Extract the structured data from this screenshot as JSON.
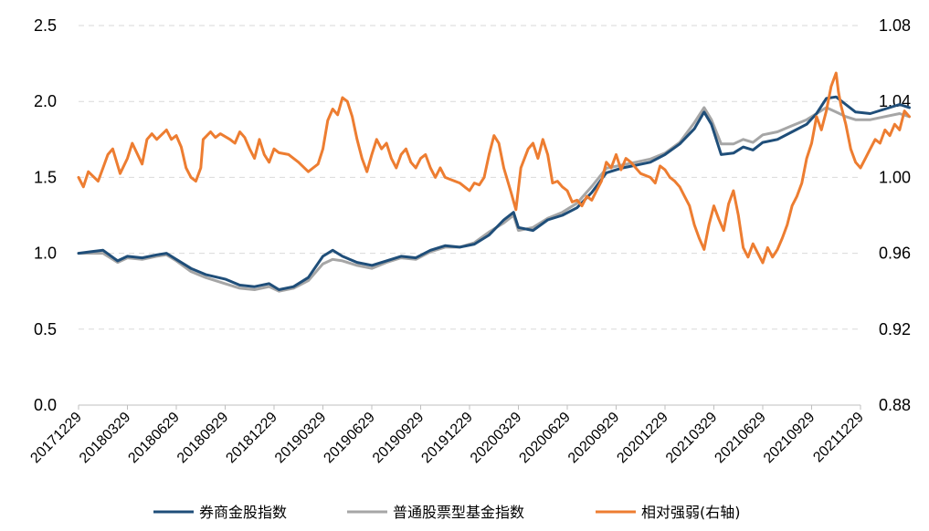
{
  "chart_data": {
    "type": "line",
    "x_categories": [
      "20171229",
      "20180329",
      "20180629",
      "20180929",
      "20181229",
      "20190329",
      "20190629",
      "20190929",
      "20191229",
      "20200329",
      "20200629",
      "20200929",
      "20201229",
      "20210329",
      "20210629",
      "20210929",
      "20211229"
    ],
    "left_axis": {
      "ticks": [
        "0.0",
        "0.5",
        "1.0",
        "1.5",
        "2.0",
        "2.5"
      ],
      "range": [
        0,
        2.5
      ]
    },
    "right_axis": {
      "ticks": [
        "0.88",
        "0.92",
        "0.96",
        "1.00",
        "1.04",
        "1.08"
      ],
      "range": [
        0.88,
        1.08
      ]
    },
    "grid": "horizontal-dashed",
    "legend_position": "bottom",
    "series": [
      {
        "name": "券商金股指数",
        "axis": "left",
        "color": "#1f4e79",
        "points": [
          [
            0,
            1.0
          ],
          [
            0.25,
            1.01
          ],
          [
            0.5,
            1.02
          ],
          [
            0.8,
            0.95
          ],
          [
            1.0,
            0.98
          ],
          [
            1.3,
            0.97
          ],
          [
            1.6,
            0.99
          ],
          [
            1.8,
            1.0
          ],
          [
            2.0,
            0.96
          ],
          [
            2.3,
            0.9
          ],
          [
            2.6,
            0.86
          ],
          [
            3.0,
            0.83
          ],
          [
            3.3,
            0.79
          ],
          [
            3.6,
            0.78
          ],
          [
            3.9,
            0.8
          ],
          [
            4.1,
            0.76
          ],
          [
            4.4,
            0.78
          ],
          [
            4.7,
            0.84
          ],
          [
            5.0,
            0.98
          ],
          [
            5.2,
            1.02
          ],
          [
            5.4,
            0.98
          ],
          [
            5.7,
            0.94
          ],
          [
            6.0,
            0.92
          ],
          [
            6.3,
            0.95
          ],
          [
            6.6,
            0.98
          ],
          [
            6.9,
            0.97
          ],
          [
            7.2,
            1.02
          ],
          [
            7.5,
            1.05
          ],
          [
            7.8,
            1.04
          ],
          [
            8.1,
            1.06
          ],
          [
            8.4,
            1.12
          ],
          [
            8.7,
            1.22
          ],
          [
            8.9,
            1.27
          ],
          [
            9.0,
            1.17
          ],
          [
            9.3,
            1.15
          ],
          [
            9.6,
            1.22
          ],
          [
            9.9,
            1.25
          ],
          [
            10.2,
            1.3
          ],
          [
            10.5,
            1.4
          ],
          [
            10.8,
            1.53
          ],
          [
            11.1,
            1.56
          ],
          [
            11.4,
            1.58
          ],
          [
            11.7,
            1.6
          ],
          [
            12.0,
            1.65
          ],
          [
            12.3,
            1.72
          ],
          [
            12.6,
            1.82
          ],
          [
            12.8,
            1.93
          ],
          [
            12.95,
            1.85
          ],
          [
            13.15,
            1.65
          ],
          [
            13.4,
            1.66
          ],
          [
            13.6,
            1.7
          ],
          [
            13.8,
            1.68
          ],
          [
            14.0,
            1.73
          ],
          [
            14.3,
            1.75
          ],
          [
            14.6,
            1.8
          ],
          [
            14.9,
            1.85
          ],
          [
            15.1,
            1.92
          ],
          [
            15.3,
            2.02
          ],
          [
            15.5,
            2.03
          ],
          [
            15.7,
            1.98
          ],
          [
            15.9,
            1.93
          ],
          [
            16.2,
            1.92
          ],
          [
            16.5,
            1.95
          ],
          [
            16.8,
            1.98
          ],
          [
            17.0,
            1.96
          ]
        ]
      },
      {
        "name": "普通股票型基金指数",
        "axis": "left",
        "color": "#a6a6a6",
        "points": [
          [
            0,
            1.0
          ],
          [
            0.25,
            1.0
          ],
          [
            0.5,
            1.0
          ],
          [
            0.8,
            0.94
          ],
          [
            1.0,
            0.97
          ],
          [
            1.3,
            0.96
          ],
          [
            1.6,
            0.98
          ],
          [
            1.8,
            0.99
          ],
          [
            2.0,
            0.95
          ],
          [
            2.3,
            0.88
          ],
          [
            2.6,
            0.84
          ],
          [
            3.0,
            0.8
          ],
          [
            3.3,
            0.77
          ],
          [
            3.6,
            0.76
          ],
          [
            3.9,
            0.78
          ],
          [
            4.1,
            0.75
          ],
          [
            4.4,
            0.77
          ],
          [
            4.7,
            0.82
          ],
          [
            5.0,
            0.93
          ],
          [
            5.2,
            0.96
          ],
          [
            5.4,
            0.95
          ],
          [
            5.7,
            0.92
          ],
          [
            6.0,
            0.9
          ],
          [
            6.3,
            0.94
          ],
          [
            6.6,
            0.97
          ],
          [
            6.9,
            0.96
          ],
          [
            7.2,
            1.01
          ],
          [
            7.5,
            1.04
          ],
          [
            7.8,
            1.04
          ],
          [
            8.1,
            1.07
          ],
          [
            8.4,
            1.14
          ],
          [
            8.7,
            1.2
          ],
          [
            8.9,
            1.25
          ],
          [
            9.0,
            1.15
          ],
          [
            9.3,
            1.17
          ],
          [
            9.6,
            1.23
          ],
          [
            9.9,
            1.27
          ],
          [
            10.2,
            1.33
          ],
          [
            10.5,
            1.44
          ],
          [
            10.8,
            1.56
          ],
          [
            11.1,
            1.58
          ],
          [
            11.4,
            1.6
          ],
          [
            11.7,
            1.62
          ],
          [
            12.0,
            1.66
          ],
          [
            12.3,
            1.73
          ],
          [
            12.6,
            1.86
          ],
          [
            12.8,
            1.96
          ],
          [
            12.95,
            1.88
          ],
          [
            13.15,
            1.72
          ],
          [
            13.4,
            1.72
          ],
          [
            13.6,
            1.75
          ],
          [
            13.8,
            1.73
          ],
          [
            14.0,
            1.78
          ],
          [
            14.3,
            1.8
          ],
          [
            14.6,
            1.84
          ],
          [
            14.9,
            1.88
          ],
          [
            15.1,
            1.92
          ],
          [
            15.3,
            1.96
          ],
          [
            15.5,
            1.93
          ],
          [
            15.7,
            1.9
          ],
          [
            15.9,
            1.88
          ],
          [
            16.2,
            1.88
          ],
          [
            16.5,
            1.9
          ],
          [
            16.8,
            1.92
          ],
          [
            17.0,
            1.9
          ]
        ]
      },
      {
        "name": "相对强弱(右轴)",
        "axis": "right",
        "color": "#ed7d31",
        "points": [
          [
            0,
            1.0
          ],
          [
            0.1,
            0.995
          ],
          [
            0.2,
            1.003
          ],
          [
            0.4,
            0.998
          ],
          [
            0.5,
            1.005
          ],
          [
            0.6,
            1.012
          ],
          [
            0.7,
            1.015
          ],
          [
            0.85,
            1.002
          ],
          [
            1.0,
            1.01
          ],
          [
            1.1,
            1.018
          ],
          [
            1.3,
            1.007
          ],
          [
            1.4,
            1.02
          ],
          [
            1.5,
            1.023
          ],
          [
            1.6,
            1.02
          ],
          [
            1.8,
            1.025
          ],
          [
            1.9,
            1.02
          ],
          [
            2.0,
            1.022
          ],
          [
            2.1,
            1.016
          ],
          [
            2.2,
            1.005
          ],
          [
            2.3,
            1.0
          ],
          [
            2.4,
            0.998
          ],
          [
            2.5,
            1.005
          ],
          [
            2.55,
            1.02
          ],
          [
            2.7,
            1.024
          ],
          [
            2.8,
            1.021
          ],
          [
            2.9,
            1.023
          ],
          [
            3.1,
            1.02
          ],
          [
            3.2,
            1.018
          ],
          [
            3.3,
            1.024
          ],
          [
            3.4,
            1.021
          ],
          [
            3.5,
            1.015
          ],
          [
            3.6,
            1.01
          ],
          [
            3.7,
            1.02
          ],
          [
            3.8,
            1.012
          ],
          [
            3.9,
            1.008
          ],
          [
            4.0,
            1.015
          ],
          [
            4.1,
            1.013
          ],
          [
            4.3,
            1.012
          ],
          [
            4.5,
            1.008
          ],
          [
            4.7,
            1.003
          ],
          [
            4.8,
            1.005
          ],
          [
            4.9,
            1.007
          ],
          [
            5.0,
            1.015
          ],
          [
            5.1,
            1.03
          ],
          [
            5.2,
            1.036
          ],
          [
            5.3,
            1.033
          ],
          [
            5.4,
            1.042
          ],
          [
            5.5,
            1.04
          ],
          [
            5.6,
            1.032
          ],
          [
            5.7,
            1.02
          ],
          [
            5.8,
            1.01
          ],
          [
            5.9,
            1.003
          ],
          [
            6.0,
            1.012
          ],
          [
            6.1,
            1.02
          ],
          [
            6.2,
            1.015
          ],
          [
            6.3,
            1.018
          ],
          [
            6.4,
            1.01
          ],
          [
            6.5,
            1.005
          ],
          [
            6.6,
            1.012
          ],
          [
            6.7,
            1.015
          ],
          [
            6.8,
            1.008
          ],
          [
            6.9,
            1.005
          ],
          [
            7.0,
            1.01
          ],
          [
            7.1,
            1.012
          ],
          [
            7.2,
            1.005
          ],
          [
            7.3,
            1.0
          ],
          [
            7.4,
            1.005
          ],
          [
            7.5,
            1.0
          ],
          [
            7.6,
            0.999
          ],
          [
            7.8,
            0.997
          ],
          [
            8.0,
            0.993
          ],
          [
            8.1,
            0.997
          ],
          [
            8.2,
            0.996
          ],
          [
            8.3,
            1.0
          ],
          [
            8.4,
            1.012
          ],
          [
            8.5,
            1.022
          ],
          [
            8.6,
            1.018
          ],
          [
            8.7,
            1.005
          ],
          [
            8.85,
            0.992
          ],
          [
            8.95,
            0.983
          ],
          [
            9.05,
            1.005
          ],
          [
            9.2,
            1.015
          ],
          [
            9.3,
            1.018
          ],
          [
            9.4,
            1.01
          ],
          [
            9.5,
            1.02
          ],
          [
            9.6,
            1.012
          ],
          [
            9.7,
            0.997
          ],
          [
            9.8,
            0.998
          ],
          [
            9.9,
            0.995
          ],
          [
            10.0,
            0.993
          ],
          [
            10.1,
            0.987
          ],
          [
            10.2,
            0.988
          ],
          [
            10.3,
            0.985
          ],
          [
            10.4,
            0.99
          ],
          [
            10.5,
            0.988
          ],
          [
            10.6,
            0.993
          ],
          [
            10.7,
            0.998
          ],
          [
            10.8,
            1.008
          ],
          [
            10.9,
            1.005
          ],
          [
            11.0,
            1.012
          ],
          [
            11.1,
            1.004
          ],
          [
            11.2,
            1.01
          ],
          [
            11.3,
            1.008
          ],
          [
            11.5,
            1.002
          ],
          [
            11.7,
            1.0
          ],
          [
            11.8,
            0.997
          ],
          [
            11.9,
            1.006
          ],
          [
            12.0,
            1.004
          ],
          [
            12.1,
            1.0
          ],
          [
            12.2,
            0.998
          ],
          [
            12.3,
            0.995
          ],
          [
            12.4,
            0.99
          ],
          [
            12.5,
            0.985
          ],
          [
            12.6,
            0.975
          ],
          [
            12.7,
            0.968
          ],
          [
            12.8,
            0.962
          ],
          [
            12.9,
            0.975
          ],
          [
            13.0,
            0.985
          ],
          [
            13.1,
            0.978
          ],
          [
            13.2,
            0.972
          ],
          [
            13.3,
            0.986
          ],
          [
            13.4,
            0.993
          ],
          [
            13.5,
            0.98
          ],
          [
            13.6,
            0.963
          ],
          [
            13.7,
            0.958
          ],
          [
            13.8,
            0.965
          ],
          [
            13.9,
            0.96
          ],
          [
            14.0,
            0.955
          ],
          [
            14.1,
            0.963
          ],
          [
            14.2,
            0.958
          ],
          [
            14.3,
            0.962
          ],
          [
            14.4,
            0.968
          ],
          [
            14.5,
            0.975
          ],
          [
            14.6,
            0.985
          ],
          [
            14.7,
            0.99
          ],
          [
            14.8,
            0.997
          ],
          [
            14.9,
            1.01
          ],
          [
            15.0,
            1.018
          ],
          [
            15.1,
            1.032
          ],
          [
            15.2,
            1.025
          ],
          [
            15.3,
            1.035
          ],
          [
            15.4,
            1.048
          ],
          [
            15.5,
            1.055
          ],
          [
            15.55,
            1.045
          ],
          [
            15.6,
            1.038
          ],
          [
            15.7,
            1.028
          ],
          [
            15.8,
            1.015
          ],
          [
            15.9,
            1.008
          ],
          [
            16.0,
            1.005
          ],
          [
            16.1,
            1.01
          ],
          [
            16.2,
            1.015
          ],
          [
            16.3,
            1.02
          ],
          [
            16.4,
            1.018
          ],
          [
            16.5,
            1.025
          ],
          [
            16.6,
            1.022
          ],
          [
            16.7,
            1.028
          ],
          [
            16.8,
            1.025
          ],
          [
            16.9,
            1.035
          ],
          [
            17.0,
            1.032
          ]
        ]
      }
    ]
  }
}
